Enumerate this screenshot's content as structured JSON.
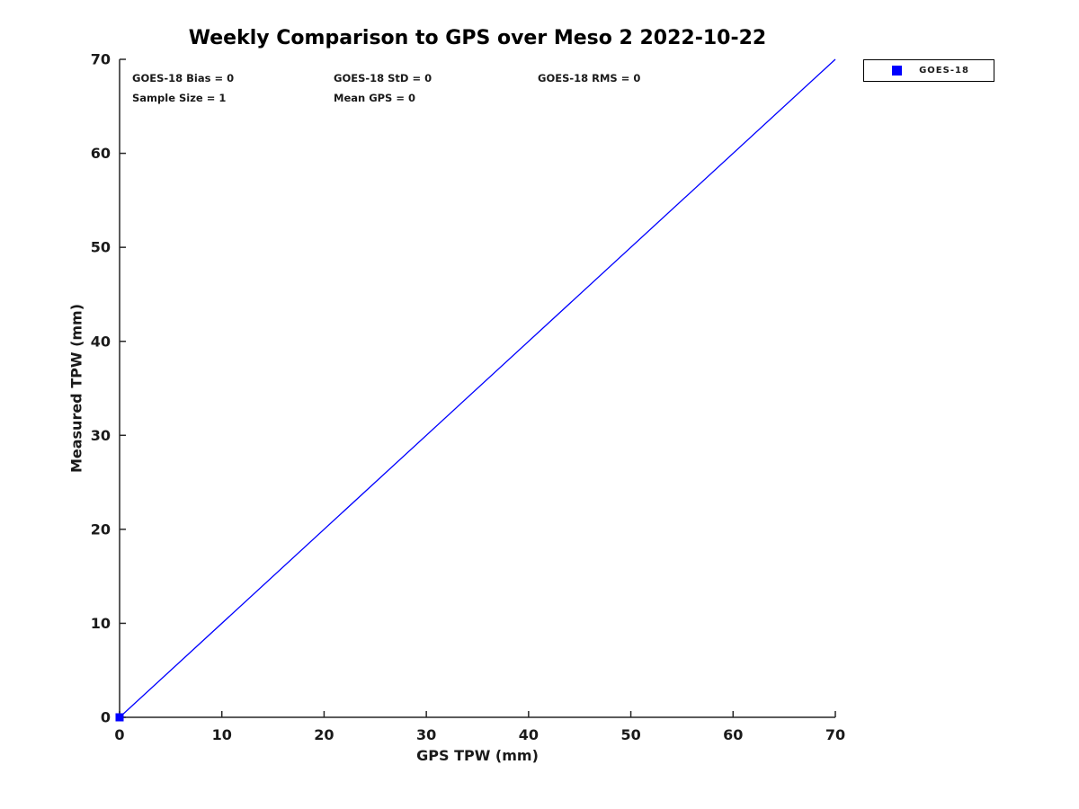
{
  "title": "Weekly Comparison to GPS over Meso 2 2022-10-22",
  "annotations": {
    "bias": "GOES-18 Bias = 0",
    "std": "GOES-18 StD = 0",
    "rms": "GOES-18 RMS = 0",
    "sample_size": "Sample Size = 1",
    "mean_gps": "Mean GPS = 0"
  },
  "legend": {
    "position": "outside-top-right",
    "entries": [
      {
        "label": "GOES-18",
        "marker": "square",
        "color": "#0000ff"
      }
    ]
  },
  "colors": {
    "background": "#ffffff",
    "axis": "#262626",
    "text": "#1a1a1a",
    "accent": "#0000ff"
  },
  "chart_data": {
    "type": "scatter",
    "title": "Weekly Comparison to GPS over Meso 2 2022-10-22",
    "xlabel": "GPS TPW (mm)",
    "ylabel": "Measured TPW (mm)",
    "xlim": [
      0,
      70
    ],
    "ylim": [
      0,
      70
    ],
    "x_ticks": [
      0,
      10,
      20,
      30,
      40,
      50,
      60,
      70
    ],
    "y_ticks": [
      0,
      10,
      20,
      30,
      40,
      50,
      60,
      70
    ],
    "grid": false,
    "legend_position": "outside-top-right",
    "series": [
      {
        "name": "GOES-18",
        "marker": "square",
        "marker_size": 9,
        "color": "#0000ff",
        "points": [
          [
            0,
            0
          ]
        ]
      }
    ],
    "reference_line": {
      "from": [
        0,
        0
      ],
      "to": [
        70,
        70
      ],
      "color": "#0000ff",
      "width": 1.3
    },
    "stats_text": [
      "GOES-18 Bias = 0",
      "GOES-18 StD = 0",
      "GOES-18 RMS = 0",
      "Sample Size = 1",
      "Mean GPS = 0"
    ]
  }
}
